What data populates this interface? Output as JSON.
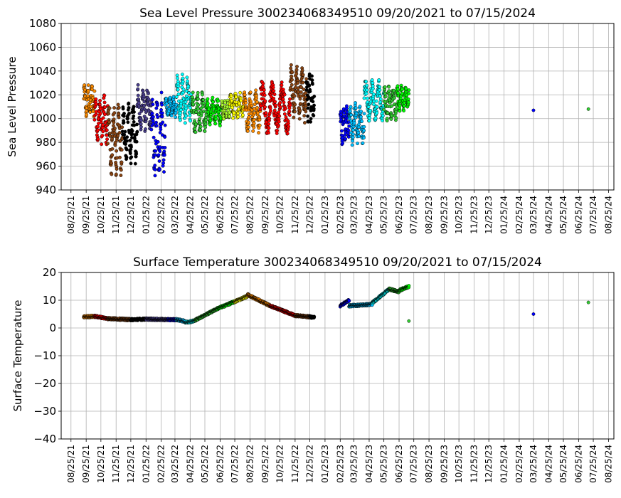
{
  "chart_data": [
    {
      "type": "scatter",
      "title": "Sea Level Pressure 300234068349510  09/20/2021 to 07/15/2024",
      "xlabel": "",
      "ylabel": "Sea Level Pressure",
      "ylim": [
        940,
        1080
      ],
      "yticks": [
        "940",
        "960",
        "980",
        "1000",
        "1020",
        "1040",
        "1060",
        "1080"
      ],
      "xticks": [
        "08/25/21",
        "09/25/21",
        "10/25/21",
        "11/25/21",
        "12/25/21",
        "01/25/22",
        "02/25/22",
        "03/25/22",
        "04/25/22",
        "05/25/22",
        "06/25/22",
        "07/25/22",
        "08/25/22",
        "09/25/22",
        "10/25/22",
        "11/25/22",
        "12/25/22",
        "01/25/23",
        "02/25/23",
        "03/25/23",
        "04/25/23",
        "05/25/23",
        "06/25/23",
        "07/25/23",
        "08/25/23",
        "09/25/23",
        "10/25/23",
        "11/25/23",
        "12/25/23",
        "01/25/24",
        "02/25/24",
        "03/25/24",
        "04/25/24",
        "05/25/24",
        "06/25/24",
        "07/25/24",
        "08/25/24"
      ],
      "grid": true,
      "segments": [
        {
          "color": "#ff8c00",
          "start": "2021-09-20",
          "end": "2021-10-12",
          "low": 1000,
          "high": 1030
        },
        {
          "color": "#ff0000",
          "start": "2021-10-12",
          "end": "2021-11-08",
          "low": 976,
          "high": 1022
        },
        {
          "color": "#8b4513",
          "start": "2021-11-08",
          "end": "2021-12-08",
          "low": 950,
          "high": 1016
        },
        {
          "color": "#000000",
          "start": "2021-12-08",
          "end": "2022-01-07",
          "low": 960,
          "high": 1015
        },
        {
          "color": "#483d8b",
          "start": "2022-01-07",
          "end": "2022-02-05",
          "low": 988,
          "high": 1029
        },
        {
          "color": "#0000ff",
          "start": "2022-02-05",
          "end": "2022-03-05",
          "low": 948,
          "high": 1023
        },
        {
          "color": "#00bfff",
          "start": "2022-03-05",
          "end": "2022-03-28",
          "low": 1000,
          "high": 1020
        },
        {
          "color": "#00ffff",
          "start": "2022-03-28",
          "end": "2022-04-28",
          "low": 996,
          "high": 1038
        },
        {
          "color": "#32cd32",
          "start": "2022-04-28",
          "end": "2022-05-28",
          "low": 986,
          "high": 1024
        },
        {
          "color": "#00ff00",
          "start": "2022-05-28",
          "end": "2022-06-28",
          "low": 994,
          "high": 1018
        },
        {
          "color": "#adff2f",
          "start": "2022-06-28",
          "end": "2022-07-15",
          "low": 998,
          "high": 1016
        },
        {
          "color": "#ffff00",
          "start": "2022-07-15",
          "end": "2022-08-12",
          "low": 1000,
          "high": 1022
        },
        {
          "color": "#ff8c00",
          "start": "2022-08-12",
          "end": "2022-09-15",
          "low": 988,
          "high": 1024
        },
        {
          "color": "#ff0000",
          "start": "2022-09-15",
          "end": "2022-11-15",
          "low": 986,
          "high": 1032
        },
        {
          "color": "#8b4513",
          "start": "2022-11-15",
          "end": "2022-12-18",
          "low": 996,
          "high": 1047
        },
        {
          "color": "#000000",
          "start": "2022-12-18",
          "end": "2023-01-03",
          "low": 994,
          "high": 1038
        },
        {
          "color": "#0000ff",
          "start": "2023-02-25",
          "end": "2023-03-15",
          "low": 978,
          "high": 1012
        },
        {
          "color": "#00bfff",
          "start": "2023-03-15",
          "end": "2023-04-15",
          "low": 976,
          "high": 1016
        },
        {
          "color": "#00ffff",
          "start": "2023-04-15",
          "end": "2023-05-25",
          "low": 996,
          "high": 1033
        },
        {
          "color": "#32cd32",
          "start": "2023-05-25",
          "end": "2023-06-20",
          "low": 996,
          "high": 1028
        },
        {
          "color": "#00ff00",
          "start": "2023-06-20",
          "end": "2023-07-15",
          "low": 1006,
          "high": 1028
        }
      ],
      "points": [
        {
          "date": "2024-03-25",
          "value": 1007,
          "color": "#0000ff"
        },
        {
          "date": "2024-07-15",
          "value": 1008,
          "color": "#32cd32"
        }
      ]
    },
    {
      "type": "scatter",
      "title": "Surface Temperature 300234068349510  09/20/2021 to 07/15/2024",
      "xlabel": "",
      "ylabel": "Surface Temperature",
      "ylim": [
        -40,
        20
      ],
      "yticks": [
        "−40",
        "−30",
        "−20",
        "−10",
        "0",
        "10",
        "20"
      ],
      "xticks": [
        "08/25/21",
        "09/25/21",
        "10/25/21",
        "11/25/21",
        "12/25/21",
        "01/25/22",
        "02/25/22",
        "03/25/22",
        "04/25/22",
        "05/25/22",
        "06/25/22",
        "07/25/22",
        "08/25/22",
        "09/25/22",
        "10/25/22",
        "11/25/22",
        "12/25/22",
        "01/25/23",
        "02/25/23",
        "03/25/23",
        "04/25/23",
        "05/25/23",
        "06/25/23",
        "07/25/23",
        "08/25/23",
        "09/25/23",
        "10/25/23",
        "11/25/23",
        "12/25/23",
        "01/25/24",
        "02/25/24",
        "03/25/24",
        "04/25/24",
        "05/25/24",
        "06/25/24",
        "07/25/24",
        "08/25/24"
      ],
      "grid": true,
      "segments": [
        {
          "color": "#ff8c00",
          "start": "2021-09-20",
          "end": "2021-10-12",
          "from": 4.0,
          "to": 4.2
        },
        {
          "color": "#ff0000",
          "start": "2021-10-12",
          "end": "2021-11-08",
          "from": 4.2,
          "to": 3.4
        },
        {
          "color": "#8b4513",
          "start": "2021-11-08",
          "end": "2021-12-25",
          "from": 3.4,
          "to": 3.0
        },
        {
          "color": "#000000",
          "start": "2021-12-25",
          "end": "2022-01-25",
          "from": 3.0,
          "to": 3.2
        },
        {
          "color": "#483d8b",
          "start": "2022-01-25",
          "end": "2022-03-10",
          "from": 3.2,
          "to": 3.0
        },
        {
          "color": "#0000ff",
          "start": "2022-03-10",
          "end": "2022-03-28",
          "from": 3.0,
          "to": 3.0
        },
        {
          "color": "#00bfff",
          "start": "2022-03-28",
          "end": "2022-04-15",
          "from": 3.0,
          "to": 2.4
        },
        {
          "color": "#00ffff",
          "start": "2022-04-15",
          "end": "2022-05-05",
          "from": 2.0,
          "to": 2.6
        },
        {
          "color": "#32cd32",
          "start": "2022-05-05",
          "end": "2022-06-20",
          "from": 2.8,
          "to": 7.0
        },
        {
          "color": "#00ff00",
          "start": "2022-06-20",
          "end": "2022-07-25",
          "from": 7.0,
          "to": 9.5
        },
        {
          "color": "#ffff00",
          "start": "2022-07-25",
          "end": "2022-08-20",
          "from": 9.5,
          "to": 11.5
        },
        {
          "color": "#ff8c00",
          "start": "2022-08-20",
          "end": "2022-10-05",
          "from": 12.0,
          "to": 8.0
        },
        {
          "color": "#ff0000",
          "start": "2022-10-05",
          "end": "2022-11-25",
          "from": 8.0,
          "to": 4.5
        },
        {
          "color": "#8b4513",
          "start": "2022-11-25",
          "end": "2022-12-25",
          "from": 4.5,
          "to": 4.0
        },
        {
          "color": "#000000",
          "start": "2022-12-25",
          "end": "2023-01-03",
          "from": 4.0,
          "to": 3.8
        },
        {
          "color": "#0000ff",
          "start": "2023-02-25",
          "end": "2023-03-15",
          "from": 8.0,
          "to": 10.0
        },
        {
          "color": "#00bfff",
          "start": "2023-03-15",
          "end": "2023-05-01",
          "from": 8.0,
          "to": 8.5
        },
        {
          "color": "#00ffff",
          "start": "2023-05-01",
          "end": "2023-06-05",
          "from": 9.0,
          "to": 14.0
        },
        {
          "color": "#32cd32",
          "start": "2023-06-05",
          "end": "2023-06-25",
          "from": 14.0,
          "to": 13.0
        },
        {
          "color": "#00ff00",
          "start": "2023-06-25",
          "end": "2023-07-15",
          "from": 13.5,
          "to": 15.0
        }
      ],
      "points": [
        {
          "date": "2023-07-15",
          "value": 2.5,
          "color": "#32cd32"
        },
        {
          "date": "2024-03-25",
          "value": 5.0,
          "color": "#0000ff"
        },
        {
          "date": "2024-07-15",
          "value": 9.2,
          "color": "#32cd32"
        }
      ]
    }
  ]
}
